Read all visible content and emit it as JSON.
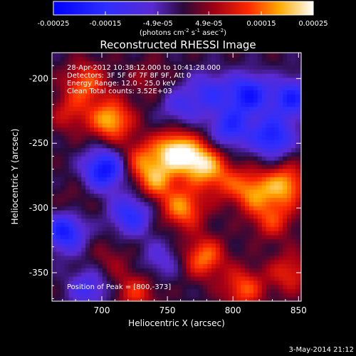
{
  "chart_data": {
    "type": "heatmap",
    "title": "Reconstructed RHESSI Image",
    "xlabel": "Heliocentric X (arcsec)",
    "ylabel": "Heliocentric Y (arcsec)",
    "xlim": [
      662,
      852
    ],
    "ylim": [
      -372,
      -180
    ],
    "x_ticks": [
      700,
      750,
      800,
      850
    ],
    "y_ticks": [
      -200,
      -250,
      -300,
      -350
    ],
    "colorbar": {
      "min": -0.00025,
      "max": 0.00025,
      "tick_labels": [
        "-0.00025",
        "-0.00015",
        "-4.9e-05",
        "4.9e-05",
        "0.00015",
        "0.00025"
      ],
      "tick_values": [
        -0.00025,
        -0.00015,
        -4.9e-05,
        4.9e-05,
        0.00015,
        0.00025
      ],
      "unit_base": "(photons cm",
      "unit_exp1": "-2",
      "unit_mid": " s",
      "unit_exp2": "-1",
      "unit_mid2": " asec",
      "unit_exp3": "-2",
      "unit_end": ")"
    },
    "annotations": [
      "28-Apr-2012 10:38:12.000 to 10:41:28.000",
      "Detectors: 3F 5F 6F 7F 8F 9F, Att 0",
      "Energy Range: 12.0 - 25.0 keV",
      "Clean     Total counts: 3.52E+03"
    ],
    "peak_label": "Position of Peak = [800,-373]",
    "peak": [
      800,
      -373
    ],
    "hotspots": [
      {
        "x": 688,
        "y": -203,
        "v": 0.00014
      },
      {
        "x": 707,
        "y": -232,
        "v": 0.0002
      },
      {
        "x": 676,
        "y": -226,
        "v": 9e-05
      },
      {
        "x": 735,
        "y": -200,
        "v": 5e-05
      },
      {
        "x": 756,
        "y": -255,
        "v": 0.00022
      },
      {
        "x": 775,
        "y": -265,
        "v": 0.00021
      },
      {
        "x": 742,
        "y": -278,
        "v": 0.00016
      },
      {
        "x": 730,
        "y": -262,
        "v": 0.00012
      },
      {
        "x": 762,
        "y": -300,
        "v": 0.00017
      },
      {
        "x": 792,
        "y": -278,
        "v": 0.0001
      },
      {
        "x": 815,
        "y": -287,
        "v": 0.00016
      },
      {
        "x": 840,
        "y": -282,
        "v": 0.00018
      },
      {
        "x": 830,
        "y": -308,
        "v": 0.00012
      },
      {
        "x": 778,
        "y": -338,
        "v": 0.00016
      },
      {
        "x": 808,
        "y": -362,
        "v": 0.00014
      },
      {
        "x": 726,
        "y": -365,
        "v": 0.00011
      },
      {
        "x": 706,
        "y": -340,
        "v": 5e-05
      },
      {
        "x": 678,
        "y": -298,
        "v": 4e-05
      },
      {
        "x": 843,
        "y": -350,
        "v": 0.00011
      }
    ],
    "coldspots": [
      {
        "x": 702,
        "y": -270,
        "v": -0.00022
      },
      {
        "x": 672,
        "y": -318,
        "v": -0.0002
      },
      {
        "x": 722,
        "y": -305,
        "v": -0.00016
      },
      {
        "x": 812,
        "y": -212,
        "v": -0.0002
      },
      {
        "x": 845,
        "y": -215,
        "v": -0.00018
      },
      {
        "x": 830,
        "y": -245,
        "v": -0.00019
      },
      {
        "x": 798,
        "y": -238,
        "v": -0.00016
      },
      {
        "x": 782,
        "y": -210,
        "v": -0.00012
      },
      {
        "x": 760,
        "y": -222,
        "v": -0.0001
      },
      {
        "x": 690,
        "y": -362,
        "v": -0.00012
      },
      {
        "x": 745,
        "y": -340,
        "v": -8e-05
      }
    ],
    "grid": false
  },
  "footer": {
    "date": "3-May-2014 21:12"
  }
}
